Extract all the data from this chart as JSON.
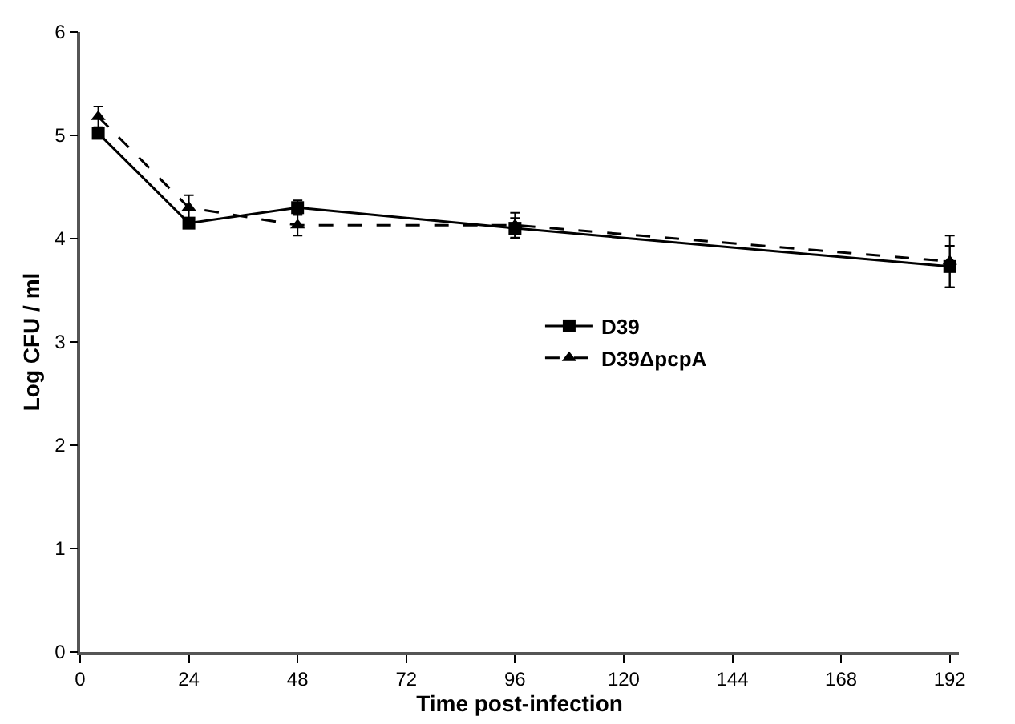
{
  "chart_data": {
    "type": "line",
    "xlabel": "Time post-infection",
    "ylabel": "Log CFU / ml",
    "x": [
      4,
      24,
      48,
      96,
      192
    ],
    "series": [
      {
        "name": "D39",
        "color": "#000000",
        "marker": "square",
        "line_style": "solid",
        "values": [
          5.02,
          4.15,
          4.3,
          4.1,
          3.73
        ],
        "errors": [
          null,
          null,
          0.07,
          0.1,
          0.2
        ]
      },
      {
        "name": "D39ΔpcpA",
        "color": "#000000",
        "marker": "triangle",
        "line_style": "dashed",
        "values": [
          5.18,
          4.3,
          4.13,
          4.13,
          3.78
        ],
        "errors": [
          0.1,
          0.12,
          0.1,
          0.12,
          0.25
        ]
      }
    ],
    "xlim": [
      0,
      194
    ],
    "xticks": [
      0,
      24,
      48,
      72,
      96,
      120,
      144,
      168,
      192
    ],
    "ylim": [
      0,
      6
    ],
    "yticks": [
      0,
      1,
      2,
      3,
      4,
      5,
      6
    ],
    "grid": false,
    "legend": "center"
  }
}
